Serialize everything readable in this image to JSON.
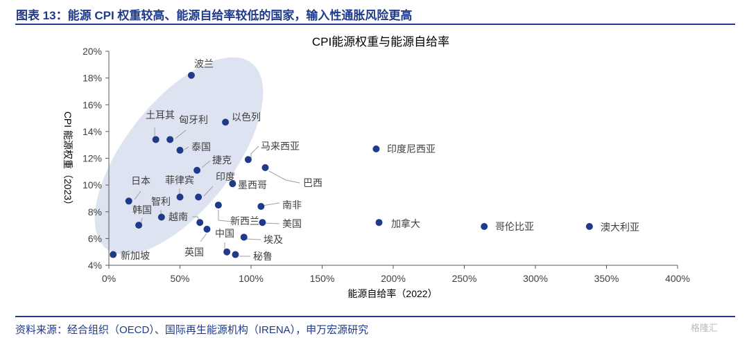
{
  "figure_title": "图表 13：能源 CPI 权重较高、能源自给率较低的国家，输入性通胀风险更高",
  "source_note": "资料来源：经合组织（OECD）、国际再生能源机构（IRENA），申万宏源研究",
  "watermark": "格隆汇",
  "colors": {
    "heading": "#1f3a8a",
    "point": "#1f3a8a",
    "ellipse": "#dde3f0",
    "leader": "#a0a0a0",
    "axis": "#595959",
    "text": "#404040"
  },
  "chart_data": {
    "type": "scatter",
    "title": "CPI能源权重与能源自给率",
    "xlabel": "能源自给率（2022）",
    "ylabel": "CPI 能源权重（2023）",
    "xlim": [
      0,
      400
    ],
    "ylim": [
      4,
      20
    ],
    "xticks": [
      0,
      50,
      100,
      150,
      200,
      250,
      300,
      350,
      400
    ],
    "yticks": [
      4,
      6,
      8,
      10,
      12,
      14,
      16,
      18,
      20
    ],
    "xtick_labels": [
      "0%",
      "50%",
      "100%",
      "150%",
      "200%",
      "250%",
      "300%",
      "350%",
      "400%"
    ],
    "ytick_labels": [
      "4%",
      "6%",
      "8%",
      "10%",
      "12%",
      "14%",
      "16%",
      "18%",
      "20%"
    ],
    "grid": false,
    "points": [
      {
        "label": "波兰",
        "x": 58,
        "y": 18.2
      },
      {
        "label": "土耳其",
        "x": 33,
        "y": 13.4
      },
      {
        "label": "匈牙利",
        "x": 43,
        "y": 13.4
      },
      {
        "label": "以色列",
        "x": 82,
        "y": 14.7
      },
      {
        "label": "泰国",
        "x": 50,
        "y": 12.6
      },
      {
        "label": "马来西亚",
        "x": 98,
        "y": 11.9
      },
      {
        "label": "印度尼西亚",
        "x": 188,
        "y": 12.7
      },
      {
        "label": "捷克",
        "x": 62,
        "y": 11.1
      },
      {
        "label": "巴西",
        "x": 110,
        "y": 11.3
      },
      {
        "label": "日本",
        "x": 14,
        "y": 8.8
      },
      {
        "label": "菲律宾",
        "x": 50,
        "y": 9.1
      },
      {
        "label": "印度",
        "x": 63,
        "y": 9.1
      },
      {
        "label": "墨西哥",
        "x": 87,
        "y": 10.1
      },
      {
        "label": "智利",
        "x": 37,
        "y": 7.6
      },
      {
        "label": "韩国",
        "x": 21,
        "y": 7.0
      },
      {
        "label": "越南",
        "x": 64,
        "y": 7.2
      },
      {
        "label": "新西兰",
        "x": 77,
        "y": 8.5
      },
      {
        "label": "南非",
        "x": 107,
        "y": 8.4
      },
      {
        "label": "美国",
        "x": 108,
        "y": 7.2
      },
      {
        "label": "加拿大",
        "x": 190,
        "y": 7.2
      },
      {
        "label": "哥伦比亚",
        "x": 264,
        "y": 6.9
      },
      {
        "label": "澳大利亚",
        "x": 338,
        "y": 6.9
      },
      {
        "label": "英国",
        "x": 69,
        "y": 6.7
      },
      {
        "label": "中国",
        "x": 83,
        "y": 5.0
      },
      {
        "label": "埃及",
        "x": 95,
        "y": 6.1
      },
      {
        "label": "秘鲁",
        "x": 89,
        "y": 4.8
      },
      {
        "label": "新加坡",
        "x": 3,
        "y": 4.8
      }
    ]
  }
}
